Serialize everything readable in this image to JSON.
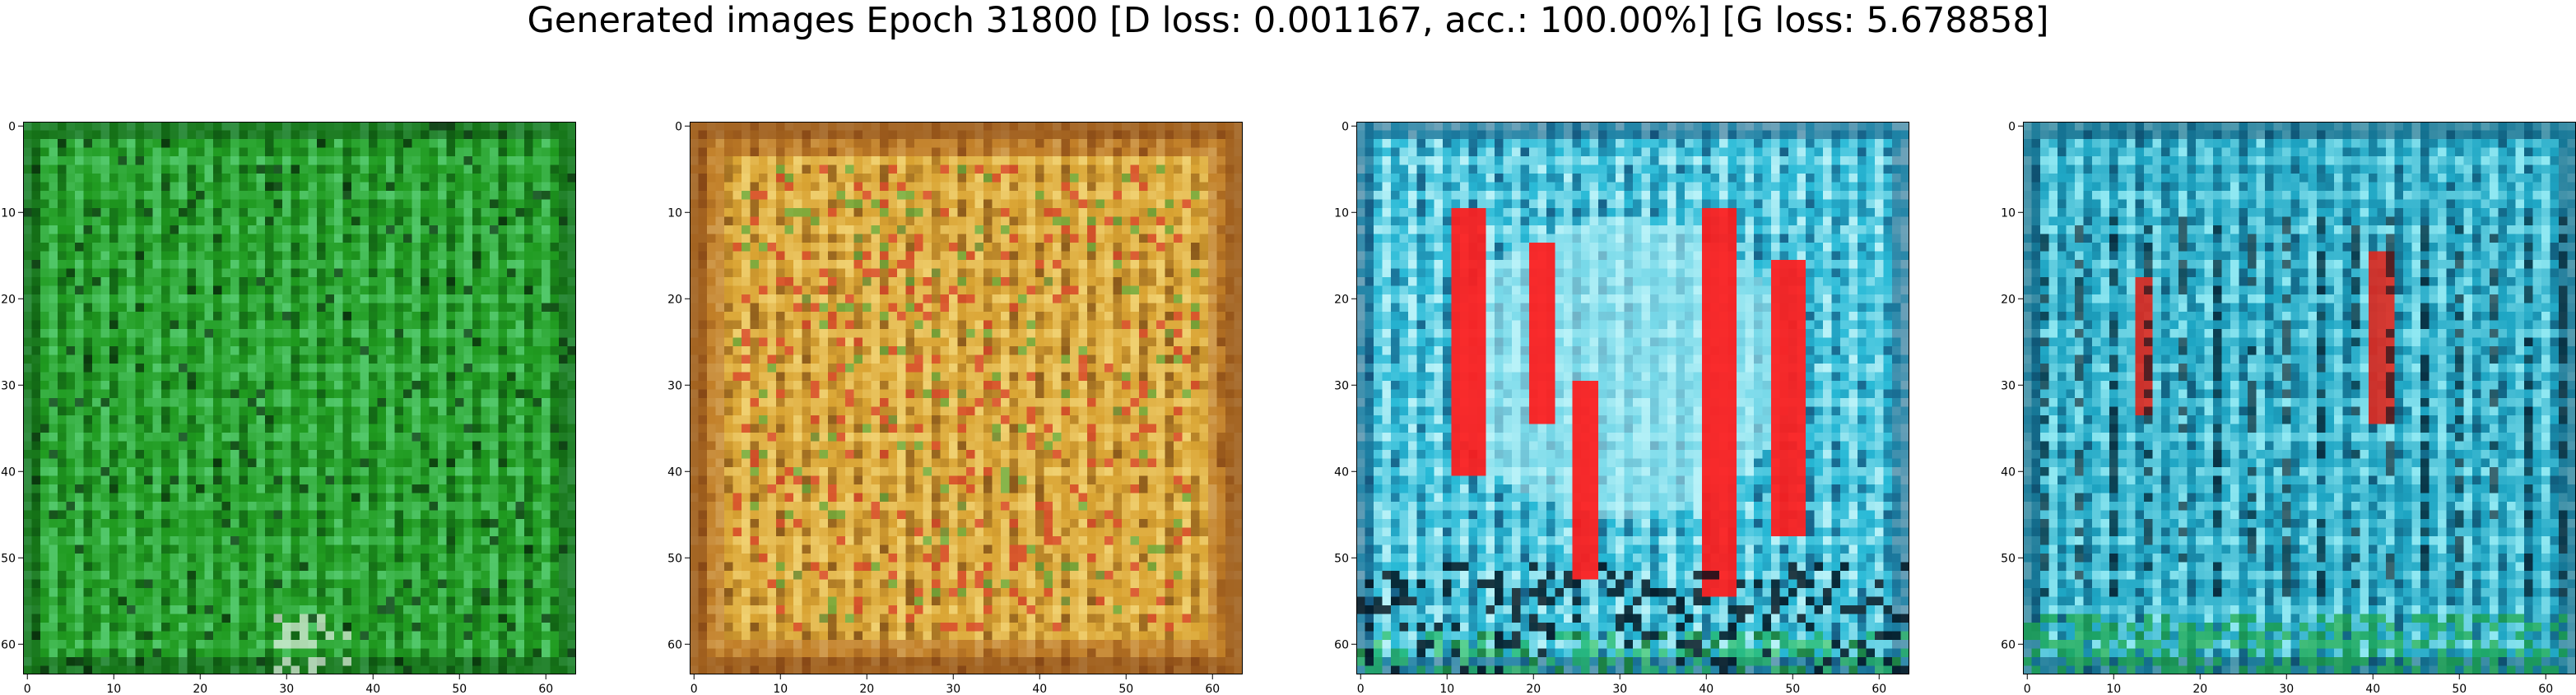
{
  "title": "Generated images Epoch 31800 [D loss: 0.001167, acc.: 100.00%] [G loss: 5.678858]",
  "panels": [
    {
      "name": "generated-image-1",
      "palette": {
        "base": "#1f9a1f",
        "dark": "#0b4a10",
        "light": "#52c86a",
        "accent": "#8fe3a4",
        "shadow": "#061c09"
      }
    },
    {
      "name": "generated-image-2",
      "palette": {
        "base": "#d9a332",
        "dark": "#6d3d12",
        "light": "#f0d070",
        "accent": "#d8452a",
        "shadow": "#2a1606"
      }
    },
    {
      "name": "generated-image-3",
      "palette": {
        "base": "#27b9d6",
        "dark": "#10406b",
        "light": "#b8f2f8",
        "accent": "#ff1a1a",
        "shadow": "#020e18"
      }
    },
    {
      "name": "generated-image-4",
      "palette": {
        "base": "#1ea6c4",
        "dark": "#0b3f60",
        "light": "#8fe8f2",
        "accent": "#e0281e",
        "shadow": "#02101a"
      }
    }
  ],
  "axes": {
    "xticks": [
      "0",
      "10",
      "20",
      "30",
      "40",
      "50",
      "60"
    ],
    "yticks": [
      "0",
      "10",
      "20",
      "30",
      "40",
      "50",
      "60"
    ]
  }
}
